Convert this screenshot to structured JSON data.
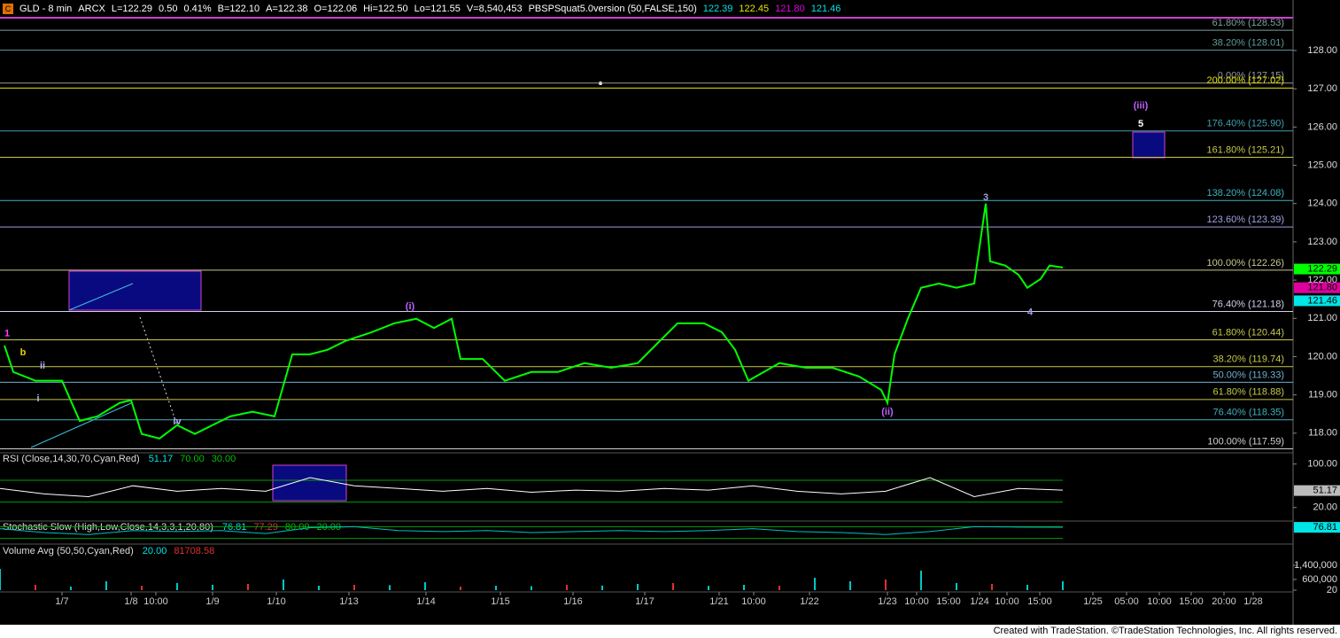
{
  "header": {
    "items": [
      {
        "text": "GLD - 8 min",
        "color": "#ffffff"
      },
      {
        "text": "ARCX",
        "color": "#ffffff"
      },
      {
        "text": "L=122.29",
        "color": "#ffffff"
      },
      {
        "text": "0.50",
        "color": "#ffffff"
      },
      {
        "text": "0.41%",
        "color": "#ffffff"
      },
      {
        "text": "B=122.10",
        "color": "#ffffff"
      },
      {
        "text": "A=122.38",
        "color": "#ffffff"
      },
      {
        "text": "O=122.06",
        "color": "#ffffff"
      },
      {
        "text": "Hi=122.50",
        "color": "#ffffff"
      },
      {
        "text": "Lo=121.55",
        "color": "#ffffff"
      },
      {
        "text": "V=8,540,453",
        "color": "#ffffff"
      },
      {
        "text": "PBSPSquat5.0version (50,FALSE,150)",
        "color": "#ffffff"
      },
      {
        "text": "122.39",
        "color": "#00e5e5"
      },
      {
        "text": "122.45",
        "color": "#e5e500"
      },
      {
        "text": "121.80",
        "color": "#e000e0"
      },
      {
        "text": "121.46",
        "color": "#00e5e5"
      }
    ],
    "footer": "Created with TradeStation. ©TradeStation Technologies, Inc. All rights reserved."
  },
  "chart_data": [
    {
      "type": "line",
      "xlim": [
        0,
        1460
      ],
      "ylim": [
        117.51,
        129.32
      ],
      "yticks": [
        {
          "value": 118,
          "label": "118.00"
        },
        {
          "value": 119,
          "label": "119.00"
        },
        {
          "value": 120,
          "label": "120.00"
        },
        {
          "value": 121,
          "label": "121.00"
        },
        {
          "value": 122,
          "label": "122.00"
        },
        {
          "value": 123,
          "label": "123.00"
        },
        {
          "value": 124,
          "label": "124.00"
        },
        {
          "value": 125,
          "label": "125.00"
        },
        {
          "value": 126,
          "label": "126.00"
        },
        {
          "value": 127,
          "label": "127.00"
        },
        {
          "value": 128,
          "label": "128.00"
        }
      ],
      "series": [
        {
          "color": "#00ff00",
          "x": [
            5,
            15,
            40,
            70,
            90,
            110,
            135,
            148,
            160,
            180,
            200,
            220,
            240,
            260,
            285,
            310,
            330,
            350,
            370,
            390,
            420,
            445,
            470,
            490,
            510,
            520,
            545,
            570,
            600,
            630,
            660,
            690,
            720,
            745,
            765,
            795,
            815,
            830,
            845,
            880,
            910,
            940,
            970,
            995,
            1002,
            1010,
            1025,
            1040,
            1060,
            1080,
            1100,
            1113,
            1118,
            1135,
            1150,
            1160,
            1175,
            1185,
            1200
          ],
          "values": [
            120.29,
            119.6,
            119.37,
            119.37,
            118.32,
            118.44,
            118.79,
            118.86,
            117.98,
            117.86,
            118.21,
            117.98,
            118.21,
            118.44,
            118.56,
            118.44,
            120.06,
            120.06,
            120.18,
            120.41,
            120.64,
            120.87,
            120.99,
            120.75,
            120.99,
            119.94,
            119.94,
            119.37,
            119.6,
            119.6,
            119.83,
            119.71,
            119.83,
            120.41,
            120.87,
            120.87,
            120.64,
            120.18,
            119.37,
            119.83,
            119.71,
            119.71,
            119.48,
            119.13,
            118.79,
            120.06,
            120.99,
            121.8,
            121.91,
            121.8,
            121.91,
            124.0,
            122.49,
            122.38,
            122.14,
            121.8,
            122.03,
            122.38,
            122.33
          ]
        }
      ],
      "levels": [
        {
          "label": "61.80% (128.53)",
          "value": 128.53,
          "color": "#7fa0a0"
        },
        {
          "label": "38.20% (128.01)",
          "value": 128.01,
          "color": "#5f9a9a"
        },
        {
          "label": "0.00% (127.15)",
          "value": 127.15,
          "color": "#9a9a9a"
        },
        {
          "label": "200.00% (127.02)",
          "value": 127.02,
          "color": "#e8e800"
        },
        {
          "label": "176.40% (125.90)",
          "value": 125.9,
          "color": "#3fa0b0"
        },
        {
          "label": "161.80% (125.21)",
          "value": 125.21,
          "color": "#c8c84a"
        },
        {
          "label": "138.20% (124.08)",
          "value": 124.08,
          "color": "#40b0c0"
        },
        {
          "label": "123.60% (123.39)",
          "value": 123.39,
          "color": "#a0a0e0"
        },
        {
          "label": "100.00% (122.26)",
          "value": 122.26,
          "color": "#c8c890"
        },
        {
          "label": "76.40% (121.18)",
          "value": 121.18,
          "color": "#d0d0f0"
        },
        {
          "label": "61.80% (120.44)",
          "value": 120.44,
          "color": "#c8c84a"
        },
        {
          "label": "38.20% (119.74)",
          "value": 119.74,
          "color": "#c8c84a"
        },
        {
          "label": "50.00% (119.33)",
          "value": 119.33,
          "color": "#6fb0d0"
        },
        {
          "label": "61.80% (118.88)",
          "value": 118.88,
          "color": "#c8c84a"
        },
        {
          "label": "76.40% (118.35)",
          "value": 118.35,
          "color": "#40b0c0"
        },
        {
          "label": "100.00% (117.59)",
          "value": 117.59,
          "color": "#d0d0d0"
        }
      ],
      "tags": [
        {
          "value": 122.29,
          "label": "122.29",
          "color": "#00ff00"
        },
        {
          "value": 121.8,
          "label": "121.80",
          "color": "#e000a0"
        },
        {
          "value": 121.46,
          "label": "121.46",
          "color": "#00e5e5"
        }
      ],
      "annotations": [
        {
          "text": "1",
          "x": 8,
          "y": 120.6,
          "color": "#ff40ff"
        },
        {
          "text": "b",
          "x": 26,
          "y": 120.1,
          "color": "#e8d000"
        },
        {
          "text": "ii",
          "x": 48,
          "y": 119.75,
          "color": "#b0b0ff"
        },
        {
          "text": "i",
          "x": 43,
          "y": 118.9,
          "color": "#b0b0ff"
        },
        {
          "text": "iv",
          "x": 200,
          "y": 118.3,
          "color": "#b0b0ff"
        },
        {
          "text": "(i)",
          "x": 463,
          "y": 121.3,
          "color": "#c060ff"
        },
        {
          "text": "(ii)",
          "x": 1002,
          "y": 118.55,
          "color": "#c060ff"
        },
        {
          "text": "3",
          "x": 1113,
          "y": 124.15,
          "color": "#a0a0e0"
        },
        {
          "text": "4",
          "x": 1163,
          "y": 121.15,
          "color": "#a0a0e0"
        },
        {
          "text": "5",
          "x": 1288,
          "y": 126.08,
          "color": "#ffffff"
        },
        {
          "text": "(iii)",
          "x": 1288,
          "y": 126.55,
          "color": "#c060ff"
        }
      ]
    },
    {
      "type": "line",
      "title": "RSI (Close,14,30,70,Cyan,Red)",
      "xlim": [
        0,
        1460
      ],
      "ylim": [
        0,
        119
      ],
      "yticks": [
        {
          "value": 100,
          "label": "100.00"
        },
        {
          "value": 20,
          "label": "20.00"
        }
      ],
      "readouts": [
        {
          "value": 51.17,
          "label": "51.17",
          "color": "#00e5e5"
        },
        {
          "value": 70,
          "label": "70.00",
          "color": "#00c000"
        },
        {
          "value": 30,
          "label": "30.00",
          "color": "#00c000"
        }
      ],
      "series": [
        {
          "color": "#ffffff",
          "x": [
            0,
            50,
            100,
            150,
            200,
            250,
            300,
            350,
            400,
            450,
            500,
            550,
            600,
            650,
            700,
            750,
            800,
            850,
            900,
            950,
            1000,
            1050,
            1100,
            1150,
            1200
          ],
          "values": [
            55,
            45,
            40,
            60,
            50,
            55,
            50,
            75,
            60,
            55,
            50,
            55,
            48,
            52,
            50,
            55,
            52,
            60,
            50,
            45,
            50,
            75,
            40,
            55,
            52
          ]
        }
      ],
      "tags": [
        {
          "value": 51.17,
          "label": "51.17",
          "color": "#bbbbbb"
        }
      ]
    },
    {
      "type": "line",
      "title": "Stochastic Slow (High,Low,Close,14,3,3,1,20,80)",
      "xlim": [
        0,
        1460
      ],
      "ylim": [
        0,
        100
      ],
      "readouts": [
        {
          "value": 76.81,
          "label": "76.81",
          "color": "#00e5e5"
        },
        {
          "value": 77.29,
          "label": "77.29",
          "color": "#e03030"
        },
        {
          "value": 80,
          "label": "80.00",
          "color": "#00c000"
        },
        {
          "value": 20,
          "label": "20.00",
          "color": "#00c000"
        }
      ],
      "series": [
        {
          "color": "#00c0c0",
          "x": [
            0,
            50,
            100,
            150,
            200,
            250,
            300,
            350,
            400,
            450,
            500,
            550,
            600,
            650,
            700,
            750,
            800,
            850,
            900,
            950,
            1000,
            1050,
            1100,
            1150,
            1200
          ],
          "values": [
            70,
            50,
            40,
            60,
            55,
            60,
            45,
            75,
            80,
            60,
            55,
            60,
            50,
            55,
            60,
            55,
            60,
            70,
            55,
            50,
            40,
            55,
            80,
            78,
            77
          ]
        }
      ],
      "tags": [
        {
          "value": 76.81,
          "label": "76.81",
          "color": "#00e5e5"
        }
      ]
    },
    {
      "type": "bar",
      "title": "Volume Avg (50,50,Cyan,Red)",
      "xlim": [
        0,
        1460
      ],
      "ylim": [
        0,
        2500000
      ],
      "yticks": [
        {
          "value": 1400000,
          "label": "1,400,000"
        },
        {
          "value": 600000,
          "label": "600,000"
        },
        20
      ],
      "readouts": [
        {
          "value": 20,
          "label": "20.00",
          "color": "#00e5e5"
        },
        {
          "value": 81708.58,
          "label": "81708.58",
          "color": "#e03030"
        }
      ],
      "series": [
        {
          "color": "#00c8c8",
          "x": [
            0,
            40,
            80,
            120,
            160,
            200,
            240,
            280,
            320,
            360,
            400,
            440,
            480,
            520,
            560,
            600,
            640,
            680,
            720,
            760,
            800,
            840,
            880,
            920,
            960,
            1000,
            1040,
            1080,
            1120,
            1160,
            1200
          ],
          "values": [
            1200000,
            300000,
            200000,
            500000,
            250000,
            400000,
            300000,
            350000,
            600000,
            250000,
            300000,
            280000,
            450000,
            200000,
            250000,
            220000,
            300000,
            260000,
            350000,
            400000,
            240000,
            300000,
            250000,
            700000,
            500000,
            600000,
            1100000,
            400000,
            350000,
            300000,
            500000
          ]
        }
      ],
      "xticks": [
        {
          "value": 70,
          "label": "1/7"
        },
        {
          "value": 148,
          "label": "1/8"
        },
        {
          "value": 176,
          "label": "10:00"
        },
        {
          "value": 240,
          "label": "1/9"
        },
        {
          "value": 312,
          "label": "1/10"
        },
        {
          "value": 394,
          "label": "1/13"
        },
        {
          "value": 481,
          "label": "1/14"
        },
        {
          "value": 565,
          "label": "1/15"
        },
        {
          "value": 647,
          "label": "1/16"
        },
        {
          "value": 728,
          "label": "1/17"
        },
        {
          "value": 812,
          "label": "1/21"
        },
        {
          "value": 851,
          "label": "10:00"
        },
        {
          "value": 914,
          "label": "1/22"
        },
        {
          "value": 1002,
          "label": "1/23"
        },
        {
          "value": 1035,
          "label": "10:00"
        },
        {
          "value": 1071,
          "label": "15:00"
        },
        {
          "value": 1106,
          "label": "1/24"
        },
        {
          "value": 1137,
          "label": "10:00"
        },
        {
          "value": 1174,
          "label": "15:00"
        },
        {
          "value": 1234,
          "label": "1/25"
        },
        {
          "value": 1272,
          "label": "05:00"
        },
        {
          "value": 1309,
          "label": "10:00"
        },
        {
          "value": 1345,
          "label": "15:00"
        },
        {
          "value": 1382,
          "label": "20:00"
        },
        {
          "value": 1415,
          "label": "1/28"
        }
      ]
    }
  ]
}
